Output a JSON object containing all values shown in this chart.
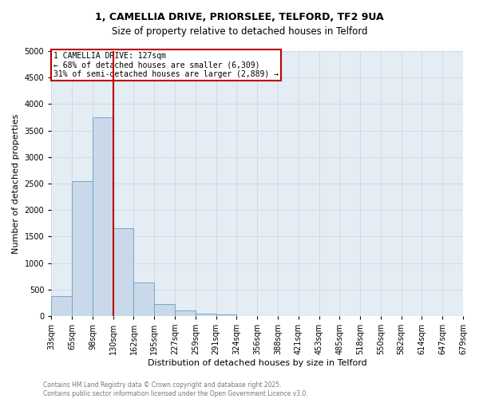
{
  "title_line1": "1, CAMELLIA DRIVE, PRIORSLEE, TELFORD, TF2 9UA",
  "title_line2": "Size of property relative to detached houses in Telford",
  "xlabel": "Distribution of detached houses by size in Telford",
  "ylabel": "Number of detached properties",
  "annotation_line1": "1 CAMELLIA DRIVE: 127sqm",
  "annotation_line2": "← 68% of detached houses are smaller (6,309)",
  "annotation_line3": "31% of semi-detached houses are larger (2,889) →",
  "footer_line1": "Contains HM Land Registry data © Crown copyright and database right 2025.",
  "footer_line2": "Contains public sector information licensed under the Open Government Licence v3.0.",
  "bin_labels": [
    "33sqm",
    "65sqm",
    "98sqm",
    "130sqm",
    "162sqm",
    "195sqm",
    "227sqm",
    "259sqm",
    "291sqm",
    "324sqm",
    "356sqm",
    "388sqm",
    "421sqm",
    "453sqm",
    "485sqm",
    "518sqm",
    "550sqm",
    "582sqm",
    "614sqm",
    "647sqm",
    "679sqm"
  ],
  "bar_values": [
    375,
    2550,
    3750,
    1650,
    625,
    225,
    100,
    50,
    30,
    0,
    0,
    0,
    0,
    0,
    0,
    0,
    0,
    0,
    0,
    0
  ],
  "vline_bar_index": 3,
  "ylim": [
    0,
    5000
  ],
  "yticks": [
    0,
    500,
    1000,
    1500,
    2000,
    2500,
    3000,
    3500,
    4000,
    4500,
    5000
  ],
  "bar_color": "#c9d9ea",
  "bar_edge_color": "#6a9ec0",
  "vline_color": "#bb0000",
  "annotation_box_color": "#bb0000",
  "grid_color": "#c8d4e0",
  "bg_color": "#e4ecf4",
  "footer_color": "#777777",
  "title_fontsize": 9,
  "ylabel_fontsize": 8,
  "xlabel_fontsize": 8,
  "tick_fontsize": 7,
  "annot_fontsize": 7
}
